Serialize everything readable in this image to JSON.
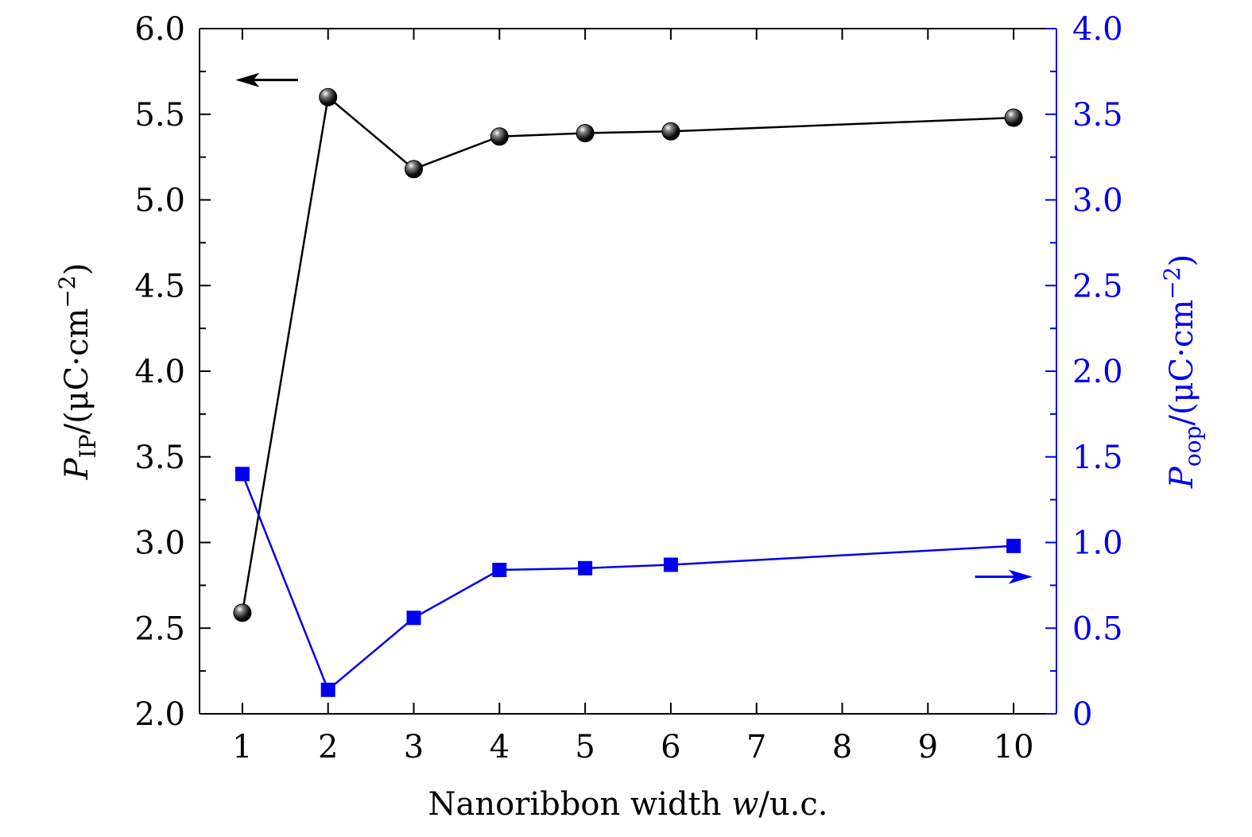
{
  "chart_data": {
    "type": "line",
    "xlabel": "Nanoribbon width w/u.c.",
    "xlabel_parts": {
      "prefix": "Nanoribbon width ",
      "var": "w",
      "suffix": "/u.c."
    },
    "x_ticks": [
      "1",
      "2",
      "3",
      "4",
      "5",
      "6",
      "7",
      "8",
      "9",
      "10"
    ],
    "xlim": [
      0.5,
      10.5
    ],
    "y_left": {
      "label": "P_IP/(μC·cm^−2)",
      "label_parts": {
        "var": "P",
        "sub": "IP",
        "unit": "/(μC·cm",
        "exp": "−2",
        "close": ")"
      },
      "ylim": [
        2.0,
        6.0
      ],
      "ticks": [
        "2.0",
        "2.5",
        "3.0",
        "3.5",
        "4.0",
        "4.5",
        "5.0",
        "5.5",
        "6.0"
      ],
      "color": "#000000"
    },
    "y_right": {
      "label": "P_oop/(μC·cm^−2)",
      "label_parts": {
        "var": "P",
        "sub": "oop",
        "unit": "/(μC·cm",
        "exp": "−2",
        "close": ")"
      },
      "ylim": [
        0,
        4.0
      ],
      "ticks": [
        "0",
        "0.5",
        "1.0",
        "1.5",
        "2.0",
        "2.5",
        "3.0",
        "3.5",
        "4.0"
      ],
      "color": "#0000ee"
    },
    "series": [
      {
        "axis": "left",
        "marker": "sphere",
        "color": "#000000",
        "x": [
          1,
          2,
          3,
          4,
          5,
          6,
          10
        ],
        "y": [
          2.59,
          5.6,
          5.18,
          5.37,
          5.39,
          5.4,
          5.48
        ]
      },
      {
        "axis": "right",
        "marker": "square",
        "color": "#0000ee",
        "x": [
          1,
          2,
          3,
          4,
          5,
          6,
          10
        ],
        "y": [
          1.4,
          0.14,
          0.56,
          0.84,
          0.85,
          0.87,
          0.98
        ]
      }
    ],
    "annotations": [
      {
        "type": "arrow-left",
        "points_to": "left-axis",
        "color": "#000000"
      },
      {
        "type": "arrow-right",
        "points_to": "right-axis",
        "color": "#0000ee"
      }
    ],
    "grid": false,
    "legend": "none"
  }
}
